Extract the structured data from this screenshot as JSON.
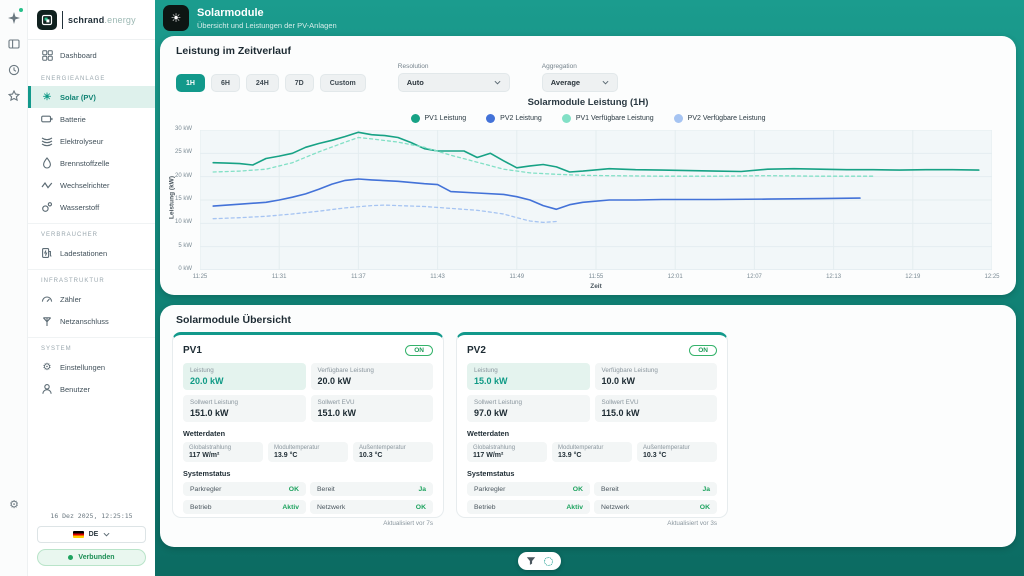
{
  "colors": {
    "accent": "#12998b",
    "accent_dark": "#0c6b62",
    "header_bg": "#1b9c8e",
    "active_item_bg": "#def1ec",
    "success": "#1ea35f",
    "pv1": "#17a285",
    "pv2": "#4372d8",
    "pv1_available": "#82e0c6",
    "pv2_available": "#a6c4f2"
  },
  "rail": {
    "icons": [
      "sparkle",
      "screens",
      "history",
      "star"
    ],
    "bottom_icon": "settings"
  },
  "sidebar": {
    "logo": {
      "name": "schrand",
      "suffix": ".energy"
    },
    "dashboard": {
      "label": "Dashboard"
    },
    "sections": [
      {
        "title": "ENERGIEANLAGE",
        "items": [
          {
            "label": "Solar (PV)",
            "icon": "sun",
            "active": true
          },
          {
            "label": "Batterie",
            "icon": "battery"
          },
          {
            "label": "Elektrolyseur",
            "icon": "layers"
          },
          {
            "label": "Brennstoffzelle",
            "icon": "droplet"
          },
          {
            "label": "Wechselrichter",
            "icon": "zigzag"
          },
          {
            "label": "Wasserstoff",
            "icon": "molecule"
          }
        ]
      },
      {
        "title": "VERBRAUCHER",
        "items": [
          {
            "label": "Ladestationen",
            "icon": "charging-station"
          }
        ]
      },
      {
        "title": "INFRASTRUKTUR",
        "items": [
          {
            "label": "Zähler",
            "icon": "gauge"
          },
          {
            "label": "Netzanschluss",
            "icon": "pylon"
          }
        ]
      },
      {
        "title": "SYSTEM",
        "items": [
          {
            "label": "Einstellungen",
            "icon": "gear"
          },
          {
            "label": "Benutzer",
            "icon": "user"
          }
        ]
      }
    ],
    "footer": {
      "timestamp": "16 Dez 2025, 12:25:15",
      "language": "DE",
      "connection_status": "Verbunden"
    }
  },
  "header": {
    "title": "Solarmodule",
    "subtitle": "Übersicht und Leistungen der PV-Anlagen"
  },
  "chart_panel": {
    "title": "Leistung im Zeitverlauf",
    "ranges": [
      {
        "label": "1H",
        "active": true
      },
      {
        "label": "6H",
        "active": false
      },
      {
        "label": "24H",
        "active": false
      },
      {
        "label": "7D",
        "active": false
      },
      {
        "label": "Custom",
        "active": false
      }
    ],
    "resolution_label": "Resolution",
    "resolution_value": "Auto",
    "aggregation_label": "Aggregation",
    "aggregation_value": "Average"
  },
  "chart_data": {
    "type": "line",
    "title": "Solarmodule Leistung (1H)",
    "xlabel": "Zeit",
    "ylabel": "Leistung (kW)",
    "ylim": [
      0,
      30
    ],
    "grid": true,
    "legend_position": "top",
    "x_start": "11:25",
    "x_end": "12:25",
    "x_ticks": [
      "11:25",
      "11:31",
      "11:37",
      "11:43",
      "11:49",
      "11:55",
      "12:01",
      "12:07",
      "12:13",
      "12:19",
      "12:25"
    ],
    "y_ticks": [
      "0 kW",
      "5 kW",
      "10 kW",
      "15 kW",
      "20 kW",
      "25 kW",
      "30 kW"
    ],
    "series": [
      {
        "name": "PV1 Leistung",
        "color": "#17a285",
        "style": "solid",
        "points": [
          [
            "11:26",
            23.0
          ],
          [
            "11:27",
            22.9
          ],
          [
            "11:28",
            22.8
          ],
          [
            "11:29",
            22.5
          ],
          [
            "11:30",
            23.9
          ],
          [
            "11:31",
            24.4
          ],
          [
            "11:32",
            25.0
          ],
          [
            "11:33",
            26.3
          ],
          [
            "11:34",
            27.1
          ],
          [
            "11:35",
            27.8
          ],
          [
            "11:36",
            28.6
          ],
          [
            "11:37",
            29.5
          ],
          [
            "11:38",
            29.0
          ],
          [
            "11:39",
            28.8
          ],
          [
            "11:40",
            28.4
          ],
          [
            "11:41",
            27.3
          ],
          [
            "11:42",
            26.0
          ],
          [
            "11:43",
            25.5
          ],
          [
            "11:44",
            25.5
          ],
          [
            "11:45",
            25.5
          ],
          [
            "11:46",
            24.1
          ],
          [
            "11:47",
            25.0
          ],
          [
            "11:48",
            23.4
          ],
          [
            "11:49",
            21.9
          ],
          [
            "11:50",
            22.3
          ],
          [
            "11:51",
            22.6
          ],
          [
            "11:52",
            22.1
          ],
          [
            "11:53",
            21.0
          ],
          [
            "11:54",
            21.2
          ],
          [
            "11:56",
            21.7
          ],
          [
            "11:58",
            21.5
          ],
          [
            "12:00",
            21.4
          ],
          [
            "12:02",
            21.3
          ],
          [
            "12:04",
            21.2
          ],
          [
            "12:06",
            21.1
          ],
          [
            "12:08",
            21.6
          ],
          [
            "12:10",
            21.7
          ],
          [
            "12:12",
            21.6
          ],
          [
            "12:14",
            21.5
          ],
          [
            "12:16",
            21.5
          ],
          [
            "12:18",
            21.4
          ],
          [
            "12:20",
            21.5
          ],
          [
            "12:22",
            21.5
          ],
          [
            "12:24",
            21.4
          ]
        ]
      },
      {
        "name": "PV2 Leistung",
        "color": "#4372d8",
        "style": "solid",
        "points": [
          [
            "11:26",
            13.7
          ],
          [
            "11:28",
            14.1
          ],
          [
            "11:30",
            14.5
          ],
          [
            "11:31",
            15.0
          ],
          [
            "11:32",
            15.6
          ],
          [
            "11:33",
            16.3
          ],
          [
            "11:34",
            17.3
          ],
          [
            "11:35",
            18.4
          ],
          [
            "11:36",
            19.2
          ],
          [
            "11:37",
            19.5
          ],
          [
            "11:38",
            19.3
          ],
          [
            "11:40",
            19.0
          ],
          [
            "11:42",
            18.5
          ],
          [
            "11:43",
            18.3
          ],
          [
            "11:44",
            16.8
          ],
          [
            "11:46",
            16.5
          ],
          [
            "11:48",
            16.2
          ],
          [
            "11:49",
            15.7
          ],
          [
            "11:50",
            15.0
          ],
          [
            "11:51",
            13.8
          ],
          [
            "11:52",
            13.0
          ],
          [
            "11:53",
            14.0
          ],
          [
            "11:54",
            14.5
          ],
          [
            "11:56",
            15.0
          ],
          [
            "11:58",
            15.0
          ],
          [
            "12:00",
            15.1
          ],
          [
            "12:04",
            15.1
          ],
          [
            "12:08",
            15.2
          ],
          [
            "12:12",
            15.3
          ],
          [
            "12:15",
            15.4
          ]
        ]
      },
      {
        "name": "PV1 Verfügbare Leistung",
        "color": "#82e0c6",
        "style": "dashed",
        "points": [
          [
            "11:26",
            21.0
          ],
          [
            "11:28",
            21.2
          ],
          [
            "11:30",
            21.6
          ],
          [
            "11:32",
            23.0
          ],
          [
            "11:34",
            25.3
          ],
          [
            "11:36",
            27.4
          ],
          [
            "11:37",
            28.4
          ],
          [
            "11:38",
            28.1
          ],
          [
            "11:40",
            27.4
          ],
          [
            "11:42",
            26.3
          ],
          [
            "11:44",
            24.6
          ],
          [
            "11:46",
            23.1
          ],
          [
            "11:48",
            21.6
          ],
          [
            "11:50",
            20.8
          ],
          [
            "11:52",
            20.5
          ],
          [
            "11:54",
            20.3
          ],
          [
            "11:56",
            20.2
          ],
          [
            "12:00",
            20.1
          ],
          [
            "12:04",
            20.1
          ],
          [
            "12:08",
            20.2
          ],
          [
            "12:12",
            20.1
          ],
          [
            "12:16",
            20.1
          ]
        ]
      },
      {
        "name": "PV2 Verfügbare Leistung",
        "color": "#a6c4f2",
        "style": "dashed",
        "points": [
          [
            "11:26",
            11.0
          ],
          [
            "11:28",
            11.2
          ],
          [
            "11:30",
            11.5
          ],
          [
            "11:32",
            12.0
          ],
          [
            "11:34",
            12.6
          ],
          [
            "11:36",
            13.3
          ],
          [
            "11:38",
            13.8
          ],
          [
            "11:39",
            13.9
          ],
          [
            "11:40",
            13.8
          ],
          [
            "11:42",
            13.6
          ],
          [
            "11:44",
            13.2
          ],
          [
            "11:46",
            12.8
          ],
          [
            "11:47",
            12.4
          ],
          [
            "11:48",
            12.0
          ],
          [
            "11:49",
            11.2
          ],
          [
            "11:50",
            10.5
          ],
          [
            "11:51",
            10.2
          ],
          [
            "11:52",
            10.4
          ]
        ]
      }
    ]
  },
  "overview": {
    "title": "Solarmodule Übersicht",
    "cards": [
      {
        "name": "PV1",
        "state": "ON",
        "stats": {
          "leistung_label": "Leistung",
          "leistung": "20.0 kW",
          "verfuegbar_label": "Verfügbare Leistung",
          "verfuegbar": "20.0 kW",
          "sollwert_label": "Sollwert Leistung",
          "sollwert": "151.0 kW",
          "sollwert_evu_label": "Sollwert EVU",
          "sollwert_evu": "151.0 kW"
        },
        "wetter": {
          "title": "Wetterdaten",
          "globalstrahlung_label": "Globalstrahlung",
          "globalstrahlung": "117 W/m²",
          "modultemp_label": "Modultemperatur",
          "modultemp": "13.9 °C",
          "aussentemp_label": "Außentemperatur",
          "aussentemp": "10.3 °C"
        },
        "status": {
          "title": "Systemstatus",
          "rows": [
            {
              "label": "Parkregler",
              "value": "OK"
            },
            {
              "label": "Bereit",
              "value": "Ja"
            },
            {
              "label": "Betrieb",
              "value": "Aktiv"
            },
            {
              "label": "Netzwerk",
              "value": "OK"
            }
          ]
        },
        "updated": "Aktualisiert vor 7s"
      },
      {
        "name": "PV2",
        "state": "ON",
        "stats": {
          "leistung_label": "Leistung",
          "leistung": "15.0 kW",
          "verfuegbar_label": "Verfügbare Leistung",
          "verfuegbar": "10.0 kW",
          "sollwert_label": "Sollwert Leistung",
          "sollwert": "97.0 kW",
          "sollwert_evu_label": "Sollwert EVU",
          "sollwert_evu": "115.0 kW"
        },
        "wetter": {
          "title": "Wetterdaten",
          "globalstrahlung_label": "Globalstrahlung",
          "globalstrahlung": "117 W/m²",
          "modultemp_label": "Modultemperatur",
          "modultemp": "13.9 °C",
          "aussentemp_label": "Außentemperatur",
          "aussentemp": "10.3 °C"
        },
        "status": {
          "title": "Systemstatus",
          "rows": [
            {
              "label": "Parkregler",
              "value": "OK"
            },
            {
              "label": "Bereit",
              "value": "Ja"
            },
            {
              "label": "Betrieb",
              "value": "Aktiv"
            },
            {
              "label": "Netzwerk",
              "value": "OK"
            }
          ]
        },
        "updated": "Aktualisiert vor 3s"
      }
    ]
  },
  "fab": {
    "icons": [
      "filter",
      "refresh-ring"
    ]
  }
}
